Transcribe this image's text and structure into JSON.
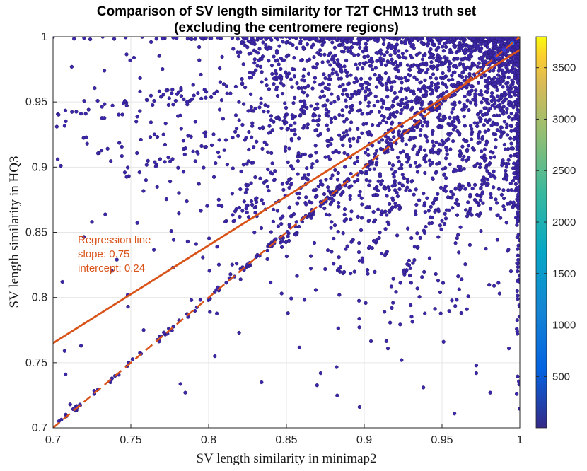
{
  "chart_data": {
    "type": "scatter",
    "title_line1": "Comparison of SV length similarity for T2T CHM13 truth set",
    "title_line2": "(excluding the centromere regions)",
    "xlabel": "SV length similarity in minimap2",
    "ylabel": "SV length similarity in HQ3",
    "xlim": [
      0.7,
      1.0
    ],
    "ylim": [
      0.7,
      1.0
    ],
    "x_ticks": [
      "0.7",
      "0.75",
      "0.8",
      "0.85",
      "0.9",
      "0.95",
      "1"
    ],
    "y_ticks": [
      "0.7",
      "0.75",
      "0.8",
      "0.85",
      "0.9",
      "0.95",
      "1"
    ],
    "grid": true,
    "colorbar": {
      "colormap": "parula",
      "range": [
        1,
        3800
      ],
      "ticks": [
        "500",
        "1000",
        "1500",
        "2000",
        "2500",
        "3000",
        "3500"
      ]
    },
    "regression": {
      "label_line1": "Regression line",
      "label_line2": "slope: 0.75",
      "label_line3": "intercept: 0.24",
      "slope": 0.75,
      "intercept": 0.24,
      "color": "#d95319"
    },
    "identity_line": {
      "slope": 1.0,
      "intercept": 0.0,
      "style": "dashed",
      "color": "#d95319"
    },
    "point_color": "#3e26a8",
    "hotspots": [
      {
        "x": 1.0,
        "y": 1.0,
        "density": 3800
      },
      {
        "x": 0.995,
        "y": 0.995,
        "density": 700
      },
      {
        "x": 0.99,
        "y": 0.99,
        "density": 500
      },
      {
        "x": 0.985,
        "y": 0.985,
        "density": 400
      },
      {
        "x": 0.98,
        "y": 0.98,
        "density": 300
      }
    ],
    "points": [
      [
        0.703,
        0.906
      ],
      [
        0.705,
        0.901
      ],
      [
        0.706,
        0.812
      ],
      [
        0.708,
        0.741
      ],
      [
        0.711,
        0.718
      ],
      [
        0.712,
        0.977
      ],
      [
        0.718,
        0.763
      ],
      [
        0.721,
        0.941
      ],
      [
        0.725,
        0.858
      ],
      [
        0.733,
        0.974
      ],
      [
        0.741,
        0.829
      ],
      [
        0.748,
        0.802
      ],
      [
        0.752,
        0.984
      ],
      [
        0.763,
        0.996
      ],
      [
        0.771,
        0.925
      ],
      [
        0.776,
        0.851
      ],
      [
        0.785,
        0.727
      ],
      [
        0.795,
        0.971
      ],
      [
        0.804,
        0.755
      ],
      [
        0.812,
        0.902
      ],
      [
        0.818,
        0.826
      ],
      [
        0.826,
        0.987
      ],
      [
        0.834,
        0.735
      ],
      [
        0.842,
        0.968
      ],
      [
        0.851,
        0.788
      ],
      [
        0.858,
        0.922
      ],
      [
        0.866,
        0.861
      ],
      [
        0.872,
        0.742
      ],
      [
        0.879,
        0.956
      ],
      [
        0.884,
        0.802
      ],
      [
        0.891,
        0.878
      ],
      [
        0.897,
        0.716
      ],
      [
        0.902,
        0.941
      ],
      [
        0.908,
        0.844
      ],
      [
        0.913,
        0.789
      ],
      [
        0.919,
        0.923
      ],
      [
        0.924,
        0.752
      ],
      [
        0.929,
        0.975
      ],
      [
        0.933,
        0.866
      ],
      [
        0.938,
        0.731
      ],
      [
        0.942,
        0.905
      ],
      [
        0.946,
        0.818
      ],
      [
        0.951,
        0.766
      ],
      [
        0.955,
        0.938
      ],
      [
        0.958,
        0.711
      ],
      [
        0.962,
        0.884
      ],
      [
        0.966,
        0.791
      ],
      [
        0.969,
        0.962
      ],
      [
        0.972,
        0.742
      ],
      [
        0.975,
        0.851
      ],
      [
        0.978,
        0.981
      ],
      [
        0.981,
        0.727
      ],
      [
        0.984,
        0.892
      ],
      [
        0.987,
        0.803
      ],
      [
        0.99,
        0.955
      ],
      [
        0.993,
        0.761
      ],
      [
        0.996,
        0.873
      ],
      [
        0.998,
        0.726
      ],
      [
        1.0,
        0.903
      ],
      [
        1.0,
        0.812
      ]
    ]
  }
}
